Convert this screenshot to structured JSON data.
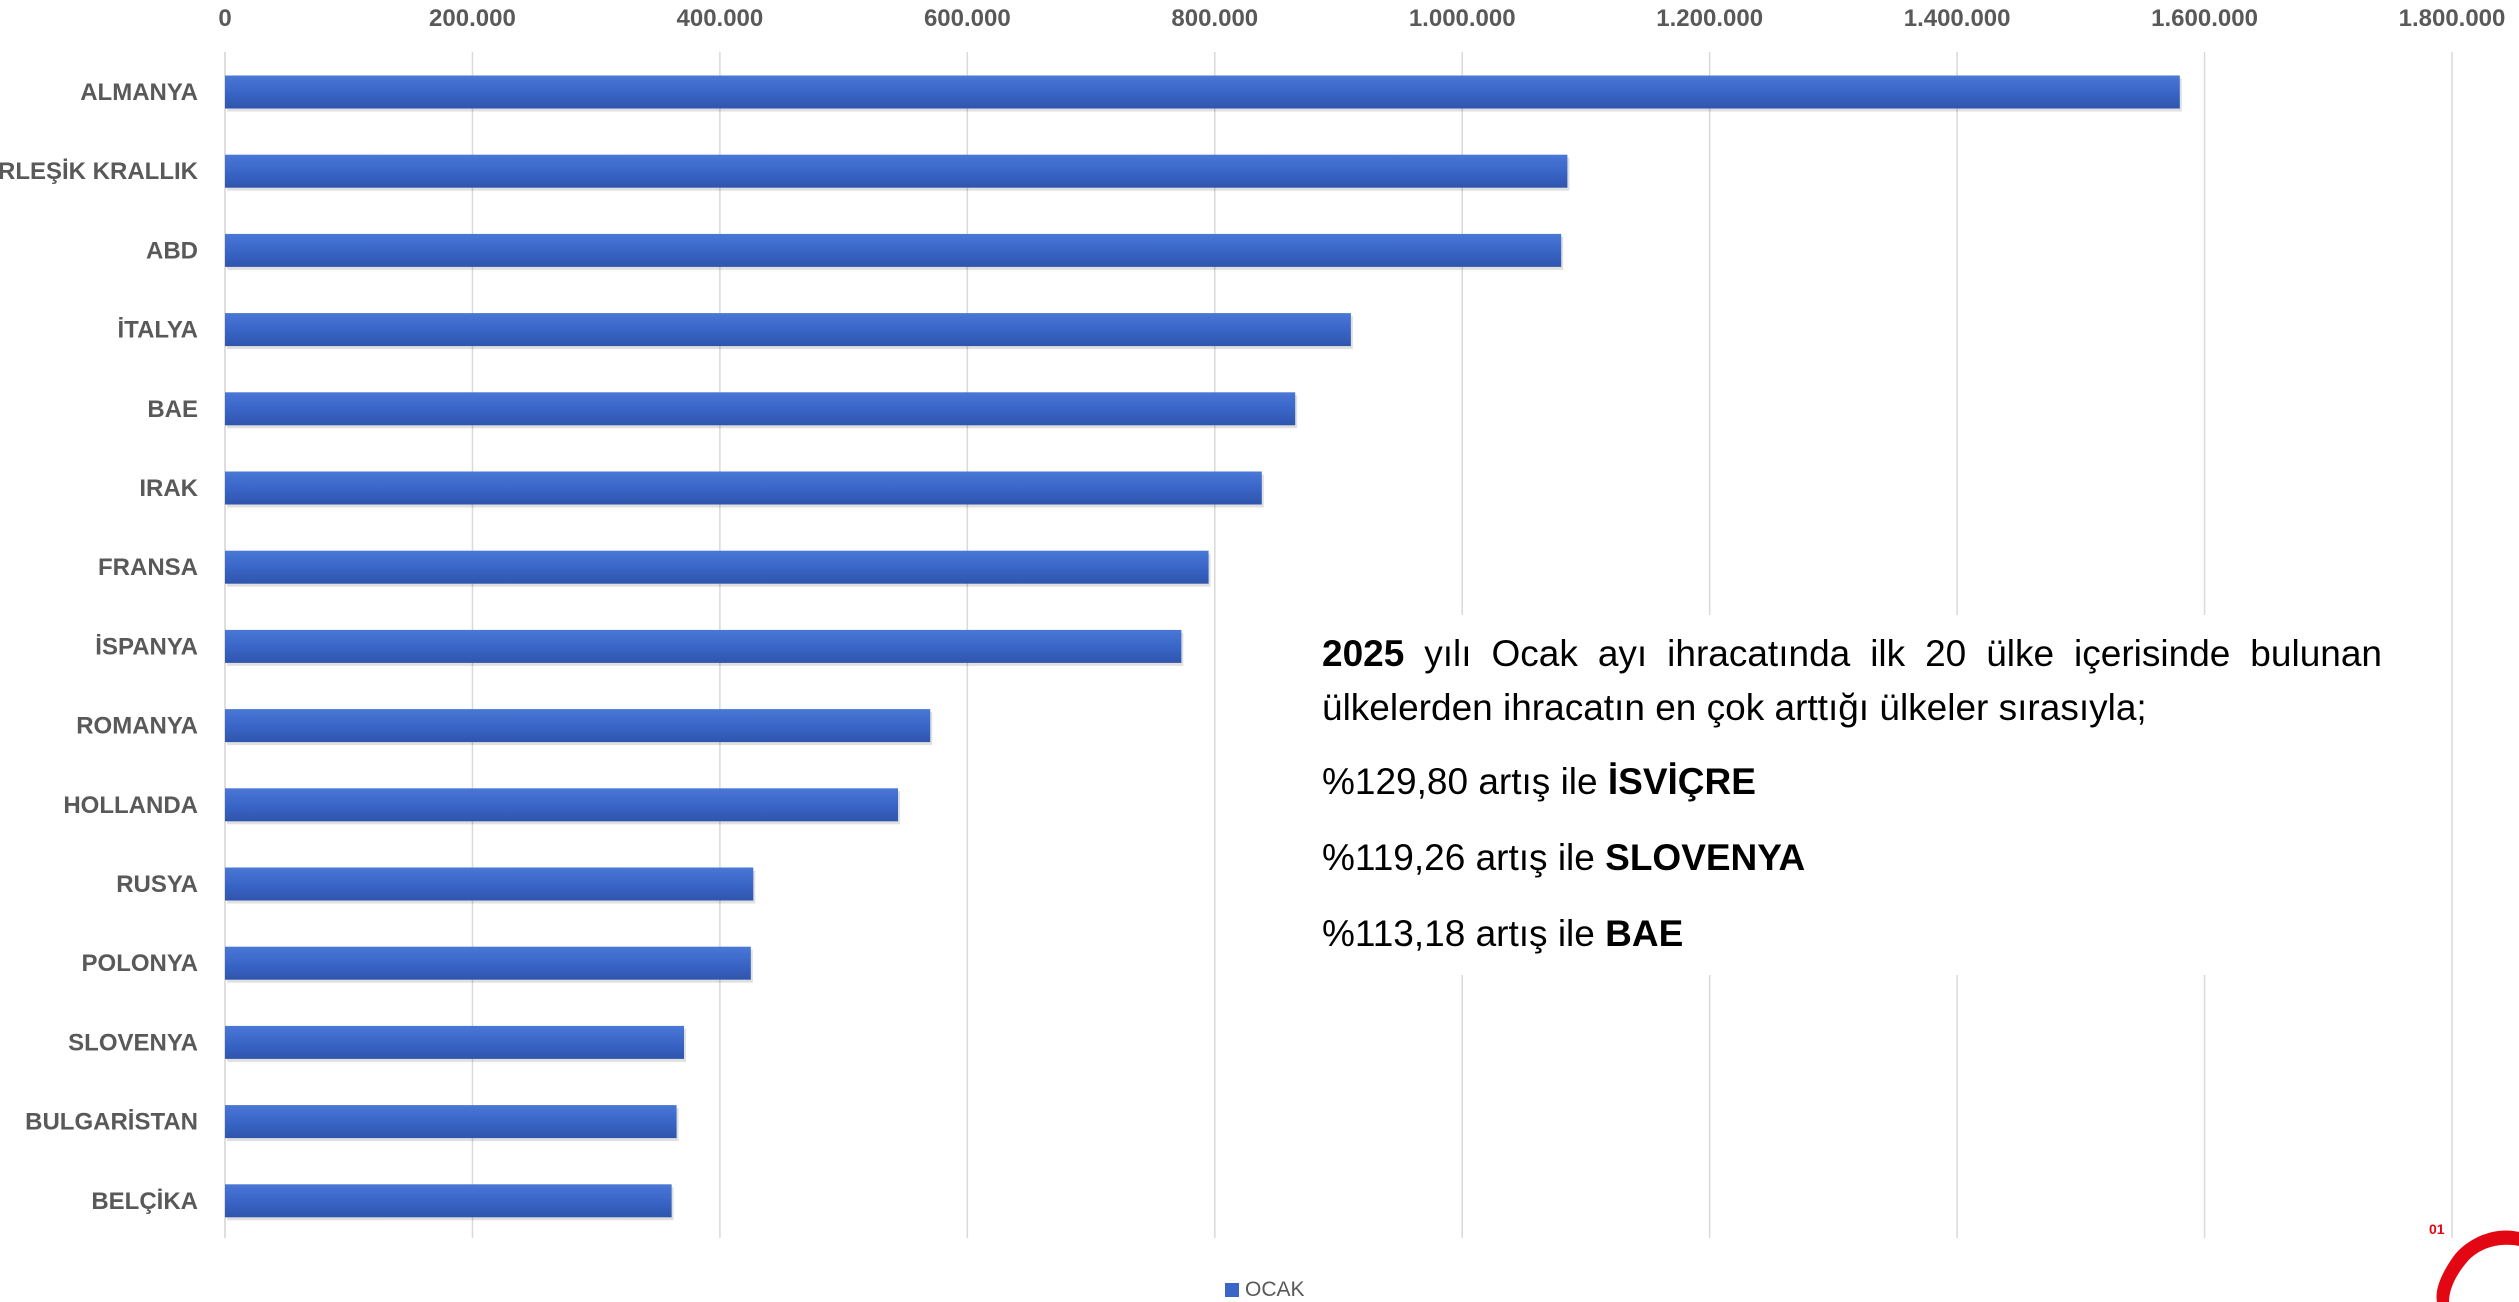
{
  "chart_data": {
    "type": "bar",
    "orientation": "horizontal",
    "categories": [
      "ALMANYA",
      "BİRLEŞİK KRALLIK",
      "ABD",
      "İTALYA",
      "BAE",
      "IRAK",
      "FRANSA",
      "İSPANYA",
      "ROMANYA",
      "HOLLANDA",
      "RUSYA",
      "POLONYA",
      "SLOVENYA",
      "BULGARİSTAN",
      "BELÇİKA"
    ],
    "series": [
      {
        "name": "OCAK",
        "color": "#3a66c8",
        "values": [
          1580000,
          1085000,
          1080000,
          910000,
          865000,
          838000,
          795000,
          773000,
          570000,
          544000,
          427000,
          425000,
          371000,
          365000,
          361000
        ]
      }
    ],
    "xlim": [
      0,
      1800000
    ],
    "x_ticks": [
      "0",
      "200.000",
      "400.000",
      "600.000",
      "800.000",
      "1.000.000",
      "1.200.000",
      "1.400.000",
      "1.600.000",
      "1.800.000"
    ],
    "x_tick_values": [
      0,
      200000,
      400000,
      600000,
      800000,
      1000000,
      1200000,
      1400000,
      1600000,
      1800000
    ],
    "title": "",
    "xlabel": "",
    "ylabel": "",
    "grid": "vertical",
    "legend_position": "bottom",
    "axis_position": "top"
  },
  "annotation": {
    "intro_year": "2025",
    "intro_text": " yılı Ocak ayı ihracatında ilk 20 ülke içerisinde bulunan ülkelerden ihracatın en çok arttığı ülkeler sırasıyla;",
    "increases": [
      {
        "pct": "%129,80 artış ile ",
        "country": "İSVİÇRE"
      },
      {
        "pct": "%119,26 artış ile ",
        "country": "SLOVENYA"
      },
      {
        "pct": "%113,18 artış ile ",
        "country": "BAE"
      }
    ]
  },
  "logo": {
    "text": "01",
    "color": "#e30613"
  }
}
